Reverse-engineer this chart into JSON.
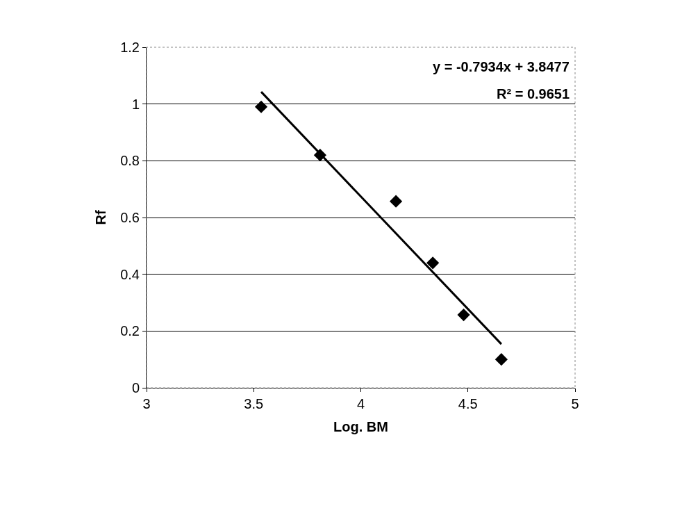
{
  "chart_data": {
    "type": "scatter",
    "xlabel": "Log. BM",
    "ylabel": "Rf",
    "xlim": [
      3,
      5
    ],
    "xticks": [
      3,
      3.5,
      4,
      4.5,
      5
    ],
    "ylim": [
      0,
      1.2
    ],
    "yticks": [
      0,
      0.2,
      0.4,
      0.6,
      0.8,
      1,
      1.2
    ],
    "grid": "y",
    "annotations": [
      "y = -0.7934x + 3.8477",
      "R² = 0.9651"
    ],
    "series": [
      {
        "marker": "diamond",
        "color": "#000000",
        "x": [
          3.535,
          3.81,
          4.164,
          4.336,
          4.48,
          4.656
        ],
        "values": [
          0.99,
          0.82,
          0.657,
          0.44,
          0.257,
          0.1
        ]
      },
      {
        "type": "line",
        "marker": "none",
        "line_style": "solid",
        "color": "#000000",
        "x": [
          3.535,
          4.656
        ],
        "values": [
          1.043,
          0.154
        ]
      }
    ]
  }
}
